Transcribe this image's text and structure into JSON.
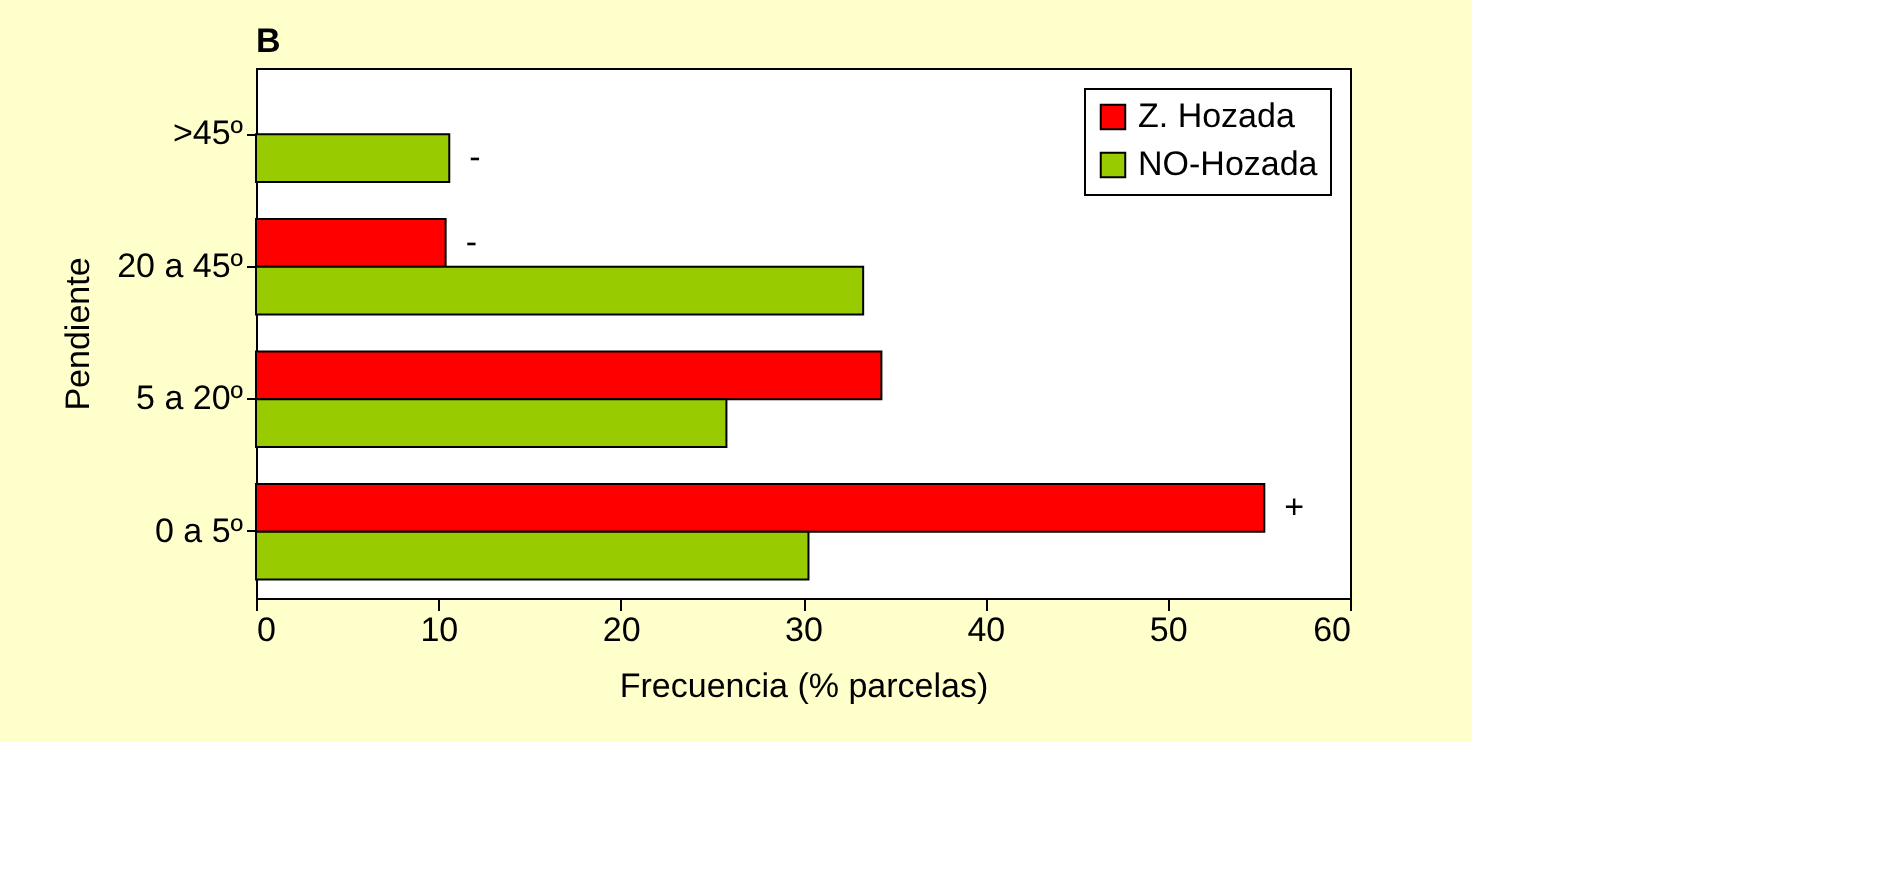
{
  "chart_data": {
    "type": "bar",
    "orientation": "horizontal",
    "title": "B",
    "xlabel": "Frecuencia  (% parcelas)",
    "ylabel": "Pendiente",
    "categories": [
      ">45º",
      "20 a 45º",
      "5 a 20º",
      "0 a 5º"
    ],
    "series": [
      {
        "name": "Z. Hozada",
        "color": "#ff0000",
        "values": [
          null,
          10.4,
          34.3,
          55.3
        ]
      },
      {
        "name": "NO-Hozada",
        "color": "#99cc00",
        "values": [
          10.6,
          33.3,
          25.8,
          30.3
        ]
      }
    ],
    "xlim": [
      0,
      60
    ],
    "xticks": [
      0,
      10,
      20,
      30,
      40,
      50,
      60
    ],
    "grid": false,
    "legend": "top right",
    "annotations": [
      {
        "text": "-",
        "x": 10.6,
        "y": ">45º"
      },
      {
        "text": "-",
        "x": 10.4,
        "y": "20 a 45º"
      },
      {
        "text": "+",
        "x": 55.3,
        "y": "0 a 5º"
      }
    ]
  }
}
